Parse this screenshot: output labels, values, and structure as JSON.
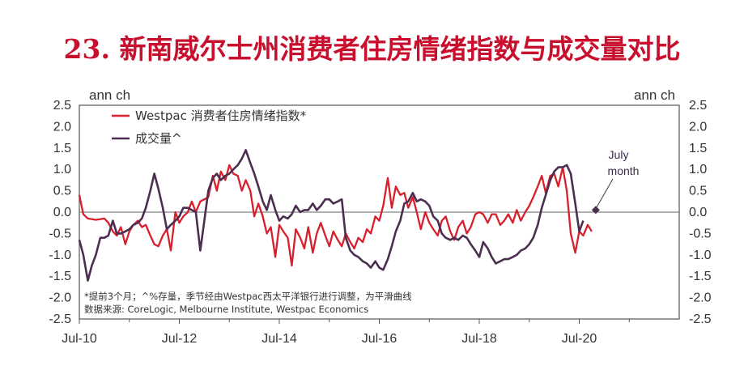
{
  "title": "23. 新南威尔士州消费者住房情绪指数与成交量对比",
  "title_parts": {
    "number": "23.",
    "text": "新南威尔士州消费者住房情绪指数与成交量对比"
  },
  "colors": {
    "westpac": "#d7202c",
    "volume": "#4b2e50",
    "title": "#c8102e",
    "text": "#333333"
  },
  "chart_data": {
    "type": "line",
    "title": "23. 新南威尔士州消费者住房情绪指数与成交量对比",
    "left_axis_label": "ann ch",
    "right_axis_label": "ann ch",
    "ylim": [
      -2.5,
      2.5
    ],
    "yticks": [
      "2.5",
      "2.0",
      "1.5",
      "1.0",
      "0.5",
      "0.0",
      "-0.5",
      "-1.0",
      "-1.5",
      "-2.0",
      "-2.5"
    ],
    "xlim": [
      2010.5,
      2022.5
    ],
    "xticks": [
      {
        "label": "Jul-10",
        "x": 2010.5
      },
      {
        "label": "Jul-12",
        "x": 2012.5
      },
      {
        "label": "Jul-14",
        "x": 2014.5
      },
      {
        "label": "Jul-16",
        "x": 2016.5
      },
      {
        "label": "Jul-18",
        "x": 2018.5
      },
      {
        "label": "Jul-20",
        "x": 2020.5
      }
    ],
    "zero_line": true,
    "legend_position": "top-left",
    "series": [
      {
        "name": "Westpac 消费者住房情绪指数*",
        "color": "#d7202c",
        "points": [
          [
            2010.5,
            0.4
          ],
          [
            2010.58,
            -0.05
          ],
          [
            2010.67,
            -0.15
          ],
          [
            2010.83,
            -0.18
          ],
          [
            2011.0,
            -0.15
          ],
          [
            2011.08,
            -0.25
          ],
          [
            2011.17,
            -0.45
          ],
          [
            2011.25,
            -0.55
          ],
          [
            2011.33,
            -0.35
          ],
          [
            2011.42,
            -0.75
          ],
          [
            2011.5,
            -0.45
          ],
          [
            2011.58,
            -0.3
          ],
          [
            2011.67,
            -0.2
          ],
          [
            2011.75,
            -0.35
          ],
          [
            2011.83,
            -0.3
          ],
          [
            2011.92,
            -0.55
          ],
          [
            2012.0,
            -0.75
          ],
          [
            2012.08,
            -0.8
          ],
          [
            2012.17,
            -0.55
          ],
          [
            2012.25,
            -0.4
          ],
          [
            2012.33,
            -0.9
          ],
          [
            2012.42,
            0.0
          ],
          [
            2012.5,
            -0.25
          ],
          [
            2012.58,
            -0.1
          ],
          [
            2012.67,
            0.0
          ],
          [
            2012.75,
            0.25
          ],
          [
            2012.83,
            0.0
          ],
          [
            2012.92,
            0.25
          ],
          [
            2013.0,
            0.3
          ],
          [
            2013.08,
            0.35
          ],
          [
            2013.17,
            0.85
          ],
          [
            2013.25,
            0.5
          ],
          [
            2013.33,
            0.95
          ],
          [
            2013.42,
            0.75
          ],
          [
            2013.5,
            1.1
          ],
          [
            2013.58,
            0.9
          ],
          [
            2013.67,
            0.85
          ],
          [
            2013.75,
            0.5
          ],
          [
            2013.83,
            0.75
          ],
          [
            2013.92,
            0.5
          ],
          [
            2014.0,
            -0.1
          ],
          [
            2014.08,
            0.2
          ],
          [
            2014.17,
            -0.1
          ],
          [
            2014.25,
            -0.5
          ],
          [
            2014.33,
            -0.35
          ],
          [
            2014.42,
            -1.05
          ],
          [
            2014.5,
            -0.3
          ],
          [
            2014.58,
            -0.45
          ],
          [
            2014.67,
            -0.6
          ],
          [
            2014.75,
            -1.25
          ],
          [
            2014.83,
            -0.4
          ],
          [
            2014.92,
            -0.6
          ],
          [
            2015.0,
            -0.85
          ],
          [
            2015.08,
            -0.35
          ],
          [
            2015.17,
            -0.95
          ],
          [
            2015.25,
            -0.5
          ],
          [
            2015.33,
            -0.25
          ],
          [
            2015.42,
            -0.55
          ],
          [
            2015.5,
            -0.8
          ],
          [
            2015.58,
            -0.45
          ],
          [
            2015.67,
            -0.65
          ],
          [
            2015.75,
            -0.8
          ],
          [
            2015.83,
            -0.5
          ],
          [
            2015.92,
            -0.7
          ],
          [
            2016.0,
            -0.85
          ],
          [
            2016.08,
            -0.6
          ],
          [
            2016.17,
            -0.7
          ],
          [
            2016.25,
            -0.4
          ],
          [
            2016.33,
            -0.5
          ],
          [
            2016.42,
            -0.1
          ],
          [
            2016.5,
            -0.2
          ],
          [
            2016.58,
            0.15
          ],
          [
            2016.67,
            0.8
          ],
          [
            2016.75,
            0.1
          ],
          [
            2016.83,
            0.6
          ],
          [
            2016.92,
            0.4
          ],
          [
            2017.0,
            0.45
          ],
          [
            2017.08,
            0.1
          ],
          [
            2017.17,
            0.35
          ],
          [
            2017.25,
            0.0
          ],
          [
            2017.33,
            -0.4
          ],
          [
            2017.42,
            0.0
          ],
          [
            2017.5,
            -0.25
          ],
          [
            2017.58,
            -0.4
          ],
          [
            2017.67,
            -0.55
          ],
          [
            2017.75,
            -0.2
          ],
          [
            2017.83,
            -0.1
          ],
          [
            2017.92,
            -0.45
          ],
          [
            2018.0,
            -0.65
          ],
          [
            2018.08,
            -0.35
          ],
          [
            2018.17,
            -0.2
          ],
          [
            2018.25,
            -0.5
          ],
          [
            2018.33,
            -0.35
          ],
          [
            2018.42,
            -0.05
          ],
          [
            2018.5,
            0.0
          ],
          [
            2018.58,
            -0.05
          ],
          [
            2018.67,
            -0.25
          ],
          [
            2018.75,
            -0.05
          ],
          [
            2018.83,
            -0.05
          ],
          [
            2018.92,
            -0.3
          ],
          [
            2019.0,
            -0.2
          ],
          [
            2019.08,
            -0.05
          ],
          [
            2019.17,
            -0.25
          ],
          [
            2019.25,
            0.05
          ],
          [
            2019.33,
            -0.2
          ],
          [
            2019.42,
            0.0
          ],
          [
            2019.5,
            0.15
          ],
          [
            2019.58,
            0.35
          ],
          [
            2019.67,
            0.6
          ],
          [
            2019.75,
            0.85
          ],
          [
            2019.83,
            0.45
          ],
          [
            2019.92,
            0.85
          ],
          [
            2020.0,
            0.9
          ],
          [
            2020.08,
            0.6
          ],
          [
            2020.17,
            1.05
          ],
          [
            2020.25,
            0.5
          ],
          [
            2020.33,
            -0.5
          ],
          [
            2020.42,
            -0.95
          ],
          [
            2020.5,
            -0.45
          ],
          [
            2020.58,
            -0.55
          ],
          [
            2020.67,
            -0.3
          ],
          [
            2020.75,
            -0.45
          ]
        ]
      },
      {
        "name": "成交量^",
        "color": "#4b2e50",
        "points": [
          [
            2010.5,
            -0.65
          ],
          [
            2010.58,
            -1.0
          ],
          [
            2010.67,
            -1.6
          ],
          [
            2010.75,
            -1.25
          ],
          [
            2010.83,
            -1.0
          ],
          [
            2010.92,
            -0.6
          ],
          [
            2011.0,
            -0.6
          ],
          [
            2011.08,
            -0.55
          ],
          [
            2011.17,
            -0.2
          ],
          [
            2011.25,
            -0.5
          ],
          [
            2011.33,
            -0.5
          ],
          [
            2011.42,
            -0.45
          ],
          [
            2011.5,
            -0.4
          ],
          [
            2011.58,
            -0.3
          ],
          [
            2011.67,
            -0.25
          ],
          [
            2011.75,
            -0.15
          ],
          [
            2011.83,
            0.1
          ],
          [
            2011.92,
            0.5
          ],
          [
            2012.0,
            0.9
          ],
          [
            2012.08,
            0.55
          ],
          [
            2012.17,
            0.1
          ],
          [
            2012.25,
            -0.4
          ],
          [
            2012.33,
            -0.3
          ],
          [
            2012.42,
            -0.2
          ],
          [
            2012.5,
            -0.1
          ],
          [
            2012.58,
            0.1
          ],
          [
            2012.67,
            0.1
          ],
          [
            2012.75,
            0.05
          ],
          [
            2012.83,
            0.0
          ],
          [
            2012.92,
            -0.9
          ],
          [
            2013.0,
            -0.2
          ],
          [
            2013.08,
            0.5
          ],
          [
            2013.17,
            0.8
          ],
          [
            2013.25,
            0.9
          ],
          [
            2013.33,
            0.75
          ],
          [
            2013.42,
            0.85
          ],
          [
            2013.5,
            0.9
          ],
          [
            2013.58,
            1.0
          ],
          [
            2013.67,
            1.1
          ],
          [
            2013.75,
            1.25
          ],
          [
            2013.83,
            1.45
          ],
          [
            2013.92,
            1.15
          ],
          [
            2014.0,
            0.9
          ],
          [
            2014.08,
            0.6
          ],
          [
            2014.17,
            0.25
          ],
          [
            2014.25,
            0.05
          ],
          [
            2014.33,
            0.4
          ],
          [
            2014.42,
            0.05
          ],
          [
            2014.5,
            -0.2
          ],
          [
            2014.58,
            -0.1
          ],
          [
            2014.67,
            -0.15
          ],
          [
            2014.75,
            -0.05
          ],
          [
            2014.83,
            0.15
          ],
          [
            2014.92,
            0.0
          ],
          [
            2015.0,
            0.05
          ],
          [
            2015.08,
            0.05
          ],
          [
            2015.17,
            0.2
          ],
          [
            2015.25,
            0.05
          ],
          [
            2015.33,
            0.15
          ],
          [
            2015.42,
            0.3
          ],
          [
            2015.5,
            0.3
          ],
          [
            2015.58,
            0.2
          ],
          [
            2015.67,
            0.25
          ],
          [
            2015.75,
            0.3
          ],
          [
            2015.83,
            -0.6
          ],
          [
            2015.92,
            -0.9
          ],
          [
            2016.0,
            -1.0
          ],
          [
            2016.08,
            -1.05
          ],
          [
            2016.17,
            -1.15
          ],
          [
            2016.25,
            -1.2
          ],
          [
            2016.33,
            -1.3
          ],
          [
            2016.42,
            -1.15
          ],
          [
            2016.5,
            -1.3
          ],
          [
            2016.58,
            -1.35
          ],
          [
            2016.67,
            -1.1
          ],
          [
            2016.75,
            -0.8
          ],
          [
            2016.83,
            -0.45
          ],
          [
            2016.92,
            -0.2
          ],
          [
            2017.0,
            0.2
          ],
          [
            2017.08,
            0.25
          ],
          [
            2017.17,
            0.45
          ],
          [
            2017.25,
            0.25
          ],
          [
            2017.33,
            0.3
          ],
          [
            2017.42,
            0.25
          ],
          [
            2017.5,
            0.15
          ],
          [
            2017.58,
            -0.1
          ],
          [
            2017.67,
            -0.2
          ],
          [
            2017.75,
            -0.5
          ],
          [
            2017.83,
            -0.6
          ],
          [
            2017.92,
            -0.65
          ],
          [
            2018.0,
            -0.6
          ],
          [
            2018.08,
            -0.65
          ],
          [
            2018.17,
            -0.55
          ],
          [
            2018.25,
            -0.6
          ],
          [
            2018.33,
            -0.75
          ],
          [
            2018.42,
            -0.9
          ],
          [
            2018.5,
            -1.05
          ],
          [
            2018.58,
            -0.7
          ],
          [
            2018.67,
            -0.85
          ],
          [
            2018.75,
            -1.05
          ],
          [
            2018.83,
            -1.2
          ],
          [
            2018.92,
            -1.15
          ],
          [
            2019.0,
            -1.1
          ],
          [
            2019.08,
            -1.1
          ],
          [
            2019.17,
            -1.05
          ],
          [
            2019.25,
            -1.0
          ],
          [
            2019.33,
            -0.9
          ],
          [
            2019.42,
            -0.85
          ],
          [
            2019.5,
            -0.75
          ],
          [
            2019.58,
            -0.6
          ],
          [
            2019.67,
            -0.3
          ],
          [
            2019.75,
            0.1
          ],
          [
            2019.83,
            0.4
          ],
          [
            2019.92,
            0.75
          ],
          [
            2020.0,
            0.95
          ],
          [
            2020.08,
            1.05
          ],
          [
            2020.17,
            1.05
          ],
          [
            2020.25,
            1.1
          ],
          [
            2020.33,
            0.9
          ],
          [
            2020.42,
            0.2
          ],
          [
            2020.5,
            -0.45
          ],
          [
            2020.58,
            -0.2
          ]
        ]
      }
    ],
    "annotation": {
      "label_line1": "July",
      "label_line2": "month",
      "x": 2020.83,
      "y": 0.05
    }
  },
  "footnote_line1": "*提前3个月；^%存量，季节经由Westpac西太平洋银行进行调整，为平滑曲线",
  "footnote_line2": "数据来源: CoreLogic, Melbourne Institute, Westpac Economics"
}
